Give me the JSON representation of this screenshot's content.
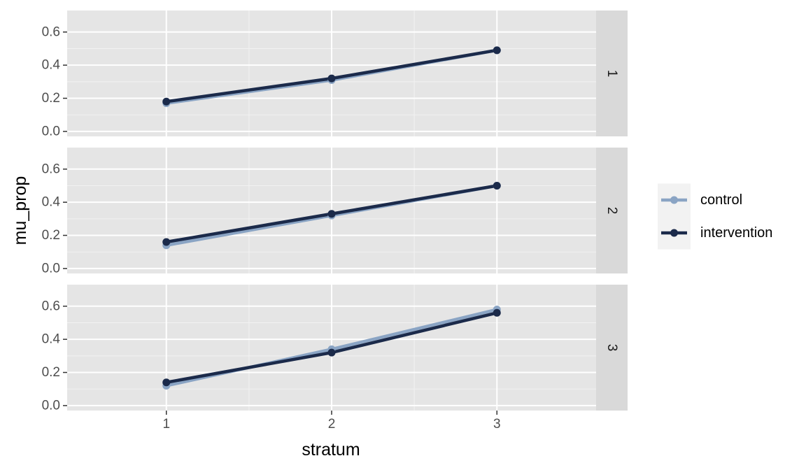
{
  "chart_data": {
    "type": "line",
    "facet_by": "row",
    "xlabel": "stratum",
    "ylabel": "mu_prop",
    "x": [
      1,
      2,
      3
    ],
    "x_ticks": [
      "1",
      "2",
      "3"
    ],
    "xlim": [
      0.4,
      3.6
    ],
    "ylim": [
      -0.03,
      0.73
    ],
    "y_ticks": [
      "0.0",
      "0.2",
      "0.4",
      "0.6"
    ],
    "y_tick_values": [
      0.0,
      0.2,
      0.4,
      0.6
    ],
    "grid": true,
    "legend_position": "right",
    "series_styles": [
      {
        "name": "control",
        "color": "#8aa4c4"
      },
      {
        "name": "intervention",
        "color": "#1b2a4a"
      }
    ],
    "facets": [
      {
        "label": "1",
        "series": [
          {
            "name": "control",
            "values": [
              0.17,
              0.31,
              0.49
            ]
          },
          {
            "name": "intervention",
            "values": [
              0.18,
              0.32,
              0.49
            ]
          }
        ]
      },
      {
        "label": "2",
        "series": [
          {
            "name": "control",
            "values": [
              0.14,
              0.32,
              0.5
            ]
          },
          {
            "name": "intervention",
            "values": [
              0.16,
              0.33,
              0.5
            ]
          }
        ]
      },
      {
        "label": "3",
        "series": [
          {
            "name": "control",
            "values": [
              0.12,
              0.34,
              0.58
            ]
          },
          {
            "name": "intervention",
            "values": [
              0.14,
              0.32,
              0.56
            ]
          }
        ]
      }
    ]
  }
}
